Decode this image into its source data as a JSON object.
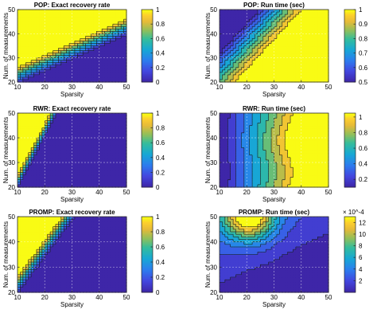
{
  "chart_data": [
    {
      "type": "heatmap",
      "subtype": "filled-contour",
      "title": "POP: Exact recovery rate",
      "xlabel": "Sparsity",
      "ylabel": "Num. of measurements",
      "xlim": [
        10,
        50
      ],
      "ylim": [
        20,
        50
      ],
      "xticks": [
        "10",
        "20",
        "30",
        "40",
        "50"
      ],
      "yticks": [
        "20",
        "30",
        "40",
        "50"
      ],
      "grid": true,
      "colormap": "parula",
      "colorbar": {
        "min": 0,
        "max": 1,
        "ticks": [
          "0",
          "0.2",
          "0.4",
          "0.6",
          "0.8",
          "1"
        ]
      },
      "description": "Recovery rate 1 near top-left, decaying toward bottom-right; boundary runs from about (10,22) up to (50,38)."
    },
    {
      "type": "heatmap",
      "subtype": "filled-contour",
      "title": "POP: Run time (sec)",
      "xlabel": "Sparsity",
      "ylabel": "Num. of measurements",
      "xlim": [
        10,
        50
      ],
      "ylim": [
        20,
        50
      ],
      "xticks": [
        "10",
        "20",
        "30",
        "40",
        "50"
      ],
      "yticks": [
        "20",
        "30",
        "40",
        "50"
      ],
      "grid": true,
      "colormap": "parula",
      "colorbar": {
        "min": 0.5,
        "max": 1.0,
        "ticks": [
          "0.5",
          "0.6",
          "0.7",
          "0.8",
          "0.9",
          "1"
        ]
      },
      "description": "Run time highest (~1 sec) in lower-right region, lowest (~0.5) at top-left."
    },
    {
      "type": "heatmap",
      "subtype": "filled-contour",
      "title": "RWR: Exact recovery rate",
      "xlabel": "Sparsity",
      "ylabel": "Num. of measurements",
      "xlim": [
        10,
        50
      ],
      "ylim": [
        20,
        50
      ],
      "xticks": [
        "10",
        "20",
        "30",
        "40",
        "50"
      ],
      "yticks": [
        "20",
        "30",
        "40",
        "50"
      ],
      "grid": true,
      "colormap": "parula",
      "colorbar": {
        "min": 0,
        "max": 1,
        "ticks": [
          "0",
          "0.2",
          "0.4",
          "0.6",
          "0.8",
          "1"
        ]
      },
      "description": "Recovery rate 1 only in narrow top-left wedge; 0 for sparsity above ~25."
    },
    {
      "type": "heatmap",
      "subtype": "filled-contour",
      "title": "RWR: Run time (sec)",
      "xlabel": "Sparsity",
      "ylabel": "Num. of measurements",
      "xlim": [
        10,
        50
      ],
      "ylim": [
        20,
        50
      ],
      "xticks": [
        "10",
        "20",
        "30",
        "40",
        "50"
      ],
      "yticks": [
        "20",
        "30",
        "40",
        "50"
      ],
      "grid": true,
      "colormap": "parula",
      "colorbar": {
        "min": 0.1,
        "max": 1.05,
        "ticks": [
          "0.2",
          "0.4",
          "0.6",
          "0.8",
          "1"
        ]
      },
      "description": "Run time rises with sparsity in roughly vertical bands, peaking (~1.05) around sparsity 35-45."
    },
    {
      "type": "heatmap",
      "subtype": "filled-contour",
      "title": "PROMP: Exact recovery rate",
      "xlabel": "Sparsity",
      "ylabel": "Num. of measurements",
      "xlim": [
        10,
        50
      ],
      "ylim": [
        20,
        50
      ],
      "xticks": [
        "10",
        "20",
        "30",
        "40",
        "50"
      ],
      "yticks": [
        "20",
        "30",
        "40",
        "50"
      ],
      "grid": true,
      "colormap": "parula",
      "colorbar": {
        "min": 0,
        "max": 1,
        "ticks": [
          "0",
          "0.2",
          "0.4",
          "0.6",
          "0.8",
          "1"
        ]
      },
      "description": "Recovery rate 1 in top-left wedge, falling to 0 for sparsity above ~30."
    },
    {
      "type": "heatmap",
      "subtype": "filled-contour",
      "title": "PROMP: Run time (sec)",
      "xlabel": "Sparsity",
      "ylabel": "Num. of measurements",
      "xlim": [
        10,
        50
      ],
      "ylim": [
        20,
        50
      ],
      "xticks": [
        "10",
        "20",
        "30",
        "40",
        "50"
      ],
      "yticks": [
        "20",
        "30",
        "40",
        "50"
      ],
      "grid": true,
      "colormap": "parula",
      "colorbar": {
        "min": 0,
        "max": 13,
        "exponent": "× 10^-4",
        "ticks": [
          "2",
          "4",
          "6",
          "8",
          "10",
          "12"
        ]
      },
      "description": "Run time peaks (~13e-4) near sparsity 20-25 with 50 measurements, low elsewhere."
    }
  ]
}
